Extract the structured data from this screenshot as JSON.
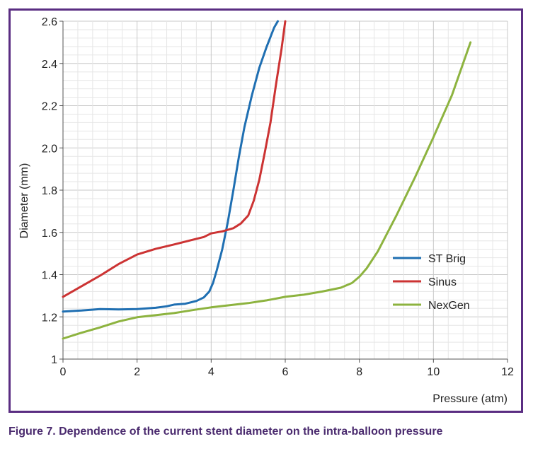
{
  "chart_data": {
    "type": "line",
    "xlabel": "Pressure (atm)",
    "ylabel": "Diameter (mm)",
    "xlim": [
      0,
      12
    ],
    "ylim": [
      1,
      2.6
    ],
    "x_ticks": [
      "0",
      "2",
      "4",
      "6",
      "8",
      "10",
      "12"
    ],
    "y_ticks": [
      "1",
      "1.2",
      "1.4",
      "1.6",
      "1.8",
      "2.0",
      "2.2",
      "2.4",
      "2.6"
    ],
    "grid": true,
    "legend_position": "right",
    "series": [
      {
        "name": "ST Brig",
        "color": "#1f6fb2",
        "points": [
          [
            0,
            1.225
          ],
          [
            0.5,
            1.23
          ],
          [
            1,
            1.237
          ],
          [
            1.5,
            1.235
          ],
          [
            2,
            1.237
          ],
          [
            2.5,
            1.243
          ],
          [
            2.8,
            1.25
          ],
          [
            3.0,
            1.258
          ],
          [
            3.3,
            1.262
          ],
          [
            3.6,
            1.275
          ],
          [
            3.8,
            1.292
          ],
          [
            3.95,
            1.32
          ],
          [
            4.05,
            1.36
          ],
          [
            4.15,
            1.42
          ],
          [
            4.3,
            1.52
          ],
          [
            4.45,
            1.65
          ],
          [
            4.6,
            1.8
          ],
          [
            4.75,
            1.96
          ],
          [
            4.9,
            2.1
          ],
          [
            5.1,
            2.25
          ],
          [
            5.3,
            2.38
          ],
          [
            5.5,
            2.48
          ],
          [
            5.7,
            2.57
          ],
          [
            5.8,
            2.6
          ]
        ]
      },
      {
        "name": "Sinus",
        "color": "#cc3333",
        "points": [
          [
            0,
            1.295
          ],
          [
            0.5,
            1.345
          ],
          [
            1,
            1.395
          ],
          [
            1.5,
            1.45
          ],
          [
            2,
            1.495
          ],
          [
            2.5,
            1.522
          ],
          [
            3,
            1.543
          ],
          [
            3.5,
            1.565
          ],
          [
            3.8,
            1.578
          ],
          [
            4.0,
            1.595
          ],
          [
            4.3,
            1.605
          ],
          [
            4.6,
            1.62
          ],
          [
            4.8,
            1.642
          ],
          [
            5.0,
            1.68
          ],
          [
            5.15,
            1.75
          ],
          [
            5.3,
            1.85
          ],
          [
            5.45,
            1.98
          ],
          [
            5.6,
            2.12
          ],
          [
            5.75,
            2.3
          ],
          [
            5.9,
            2.47
          ],
          [
            6.0,
            2.6
          ]
        ]
      },
      {
        "name": "NexGen",
        "color": "#8db33f",
        "points": [
          [
            0,
            1.097
          ],
          [
            0.5,
            1.125
          ],
          [
            1,
            1.15
          ],
          [
            1.5,
            1.178
          ],
          [
            2,
            1.198
          ],
          [
            2.5,
            1.208
          ],
          [
            3,
            1.218
          ],
          [
            3.5,
            1.232
          ],
          [
            4,
            1.245
          ],
          [
            4.5,
            1.255
          ],
          [
            5,
            1.265
          ],
          [
            5.5,
            1.278
          ],
          [
            6,
            1.295
          ],
          [
            6.5,
            1.305
          ],
          [
            7,
            1.32
          ],
          [
            7.5,
            1.338
          ],
          [
            7.8,
            1.36
          ],
          [
            8.0,
            1.39
          ],
          [
            8.2,
            1.43
          ],
          [
            8.5,
            1.51
          ],
          [
            9,
            1.68
          ],
          [
            9.5,
            1.86
          ],
          [
            10,
            2.05
          ],
          [
            10.5,
            2.25
          ],
          [
            11,
            2.5
          ]
        ]
      }
    ]
  },
  "caption": "Figure 7. Dependence of the current stent diameter on the intra-balloon pressure"
}
